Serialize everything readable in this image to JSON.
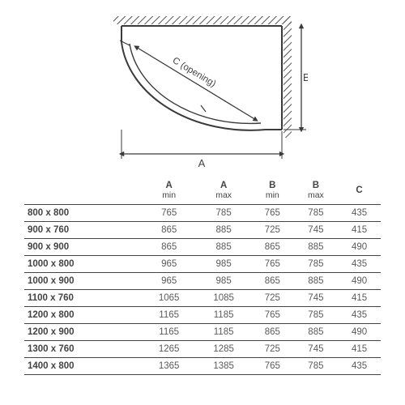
{
  "diagram": {
    "label_a": "A",
    "label_b": "B",
    "label_c": "C (opening)",
    "stroke": "#3a3a3a",
    "hatch": "#555555"
  },
  "table": {
    "headers": {
      "size": "",
      "a_min_top": "A",
      "a_min_sub": "min",
      "a_max_top": "A",
      "a_max_sub": "max",
      "b_min_top": "B",
      "b_min_sub": "min",
      "b_max_top": "B",
      "b_max_sub": "max",
      "c": "C"
    },
    "rows": [
      {
        "size": "800 x 800",
        "a_min": "765",
        "a_max": "785",
        "b_min": "765",
        "b_max": "785",
        "c": "435"
      },
      {
        "size": "900 x 760",
        "a_min": "865",
        "a_max": "885",
        "b_min": "725",
        "b_max": "745",
        "c": "415"
      },
      {
        "size": "900 x 900",
        "a_min": "865",
        "a_max": "885",
        "b_min": "865",
        "b_max": "885",
        "c": "490"
      },
      {
        "size": "1000 x 800",
        "a_min": "965",
        "a_max": "985",
        "b_min": "765",
        "b_max": "785",
        "c": "435"
      },
      {
        "size": "1000 x 900",
        "a_min": "965",
        "a_max": "985",
        "b_min": "865",
        "b_max": "885",
        "c": "490"
      },
      {
        "size": "1100 x 760",
        "a_min": "1065",
        "a_max": "1085",
        "b_min": "725",
        "b_max": "745",
        "c": "415"
      },
      {
        "size": "1200 x 800",
        "a_min": "1165",
        "a_max": "1185",
        "b_min": "765",
        "b_max": "785",
        "c": "435"
      },
      {
        "size": "1200 x 900",
        "a_min": "1165",
        "a_max": "1185",
        "b_min": "865",
        "b_max": "885",
        "c": "490"
      },
      {
        "size": "1300 x 760",
        "a_min": "1265",
        "a_max": "1285",
        "b_min": "725",
        "b_max": "745",
        "c": "415"
      },
      {
        "size": "1400 x 800",
        "a_min": "1365",
        "a_max": "1385",
        "b_min": "765",
        "b_max": "785",
        "c": "435"
      }
    ]
  }
}
